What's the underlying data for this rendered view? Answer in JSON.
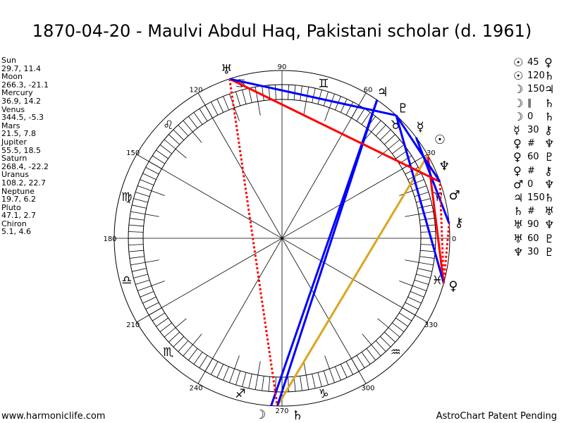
{
  "title": "1870-04-20 - Maulvi Abdul Haq, Pakistani scholar (d. 1961)",
  "planets": [
    {
      "name": "Sun",
      "coords": "29.7, 11.4",
      "lon": 29.7,
      "glyph": "☉"
    },
    {
      "name": "Moon",
      "coords": "266.3, -21.1",
      "lon": 266.3,
      "glyph": "☽"
    },
    {
      "name": "Mercury",
      "coords": "36.9, 14.2",
      "lon": 36.9,
      "glyph": "☿"
    },
    {
      "name": "Venus",
      "coords": "344.5, -5.3",
      "lon": 344.5,
      "glyph": "♀"
    },
    {
      "name": "Mars",
      "coords": "21.5, 7.8",
      "lon": 21.5,
      "glyph": "♂"
    },
    {
      "name": "Jupiter",
      "coords": "55.5, 18.5",
      "lon": 55.5,
      "glyph": "♃"
    },
    {
      "name": "Saturn",
      "coords": "268.4, -22.2",
      "lon": 268.4,
      "glyph": "♄"
    },
    {
      "name": "Uranus",
      "coords": "108.2, 22.7",
      "lon": 108.2,
      "glyph": "♅"
    },
    {
      "name": "Neptune",
      "coords": "19.7, 6.2",
      "lon": 19.7,
      "glyph": "♆"
    },
    {
      "name": "Pluto",
      "coords": "47.1, 2.7",
      "lon": 47.1,
      "glyph": "♇"
    },
    {
      "name": "Chiron",
      "coords": "5.1, 4.6",
      "lon": 5.1,
      "glyph": "⚷"
    }
  ],
  "aspects": [
    {
      "p1": "☉",
      "aspect": "45",
      "p2": "♀"
    },
    {
      "p1": "☉",
      "aspect": "120",
      "p2": "♄"
    },
    {
      "p1": "☽",
      "aspect": "150",
      "p2": "♃"
    },
    {
      "p1": "☽",
      "aspect": "∥",
      "p2": "♄"
    },
    {
      "p1": "☽",
      "aspect": "0",
      "p2": "♄"
    },
    {
      "p1": "☿",
      "aspect": "30",
      "p2": "⚷"
    },
    {
      "p1": "♀",
      "aspect": "#",
      "p2": "♆"
    },
    {
      "p1": "♀",
      "aspect": "60",
      "p2": "♇"
    },
    {
      "p1": "♀",
      "aspect": "#",
      "p2": "⚷"
    },
    {
      "p1": "♂",
      "aspect": "0",
      "p2": "♆"
    },
    {
      "p1": "♃",
      "aspect": "150",
      "p2": "♄"
    },
    {
      "p1": "♄",
      "aspect": "#",
      "p2": "♅"
    },
    {
      "p1": "♅",
      "aspect": "90",
      "p2": "♆"
    },
    {
      "p1": "♅",
      "aspect": "60",
      "p2": "♇"
    },
    {
      "p1": "♆",
      "aspect": "30",
      "p2": "♇"
    }
  ],
  "wheel": {
    "degree_labels": [
      "0",
      "30",
      "60",
      "90",
      "120",
      "150",
      "180",
      "210",
      "240",
      "270",
      "300",
      "330"
    ],
    "signs": [
      "♈",
      "♉",
      "♊",
      "♋",
      "♌",
      "♍",
      "♎",
      "♏",
      "♐",
      "♑",
      "♒",
      "♓"
    ],
    "aspect_lines": [
      {
        "from": "Sun",
        "to": "Venus",
        "color": "#ff0000",
        "style": "solid"
      },
      {
        "from": "Sun",
        "to": "Saturn",
        "color": "#daa520",
        "style": "solid"
      },
      {
        "from": "Moon",
        "to": "Jupiter",
        "color": "#0000ff",
        "style": "solid"
      },
      {
        "from": "Jupiter",
        "to": "Saturn",
        "color": "#0000ff",
        "style": "solid"
      },
      {
        "from": "Mercury",
        "to": "Chiron",
        "color": "#0000ff",
        "style": "solid"
      },
      {
        "from": "Venus",
        "to": "Pluto",
        "color": "#0000ff",
        "style": "solid"
      },
      {
        "from": "Uranus",
        "to": "Neptune",
        "color": "#ff0000",
        "style": "solid"
      },
      {
        "from": "Uranus",
        "to": "Pluto",
        "color": "#0000ff",
        "style": "solid"
      },
      {
        "from": "Neptune",
        "to": "Pluto",
        "color": "#0000ff",
        "style": "solid"
      },
      {
        "from": "Uranus",
        "to": "Saturn",
        "color": "#ff0000",
        "style": "dotted"
      },
      {
        "from": "Venus",
        "to": "Neptune",
        "color": "#ff0000",
        "style": "dotted"
      },
      {
        "from": "Venus",
        "to": "Chiron",
        "color": "#ff0000",
        "style": "dotted"
      }
    ]
  },
  "footer": {
    "left": "www.harmoniclife.com",
    "right": "AstroChart Patent Pending"
  }
}
